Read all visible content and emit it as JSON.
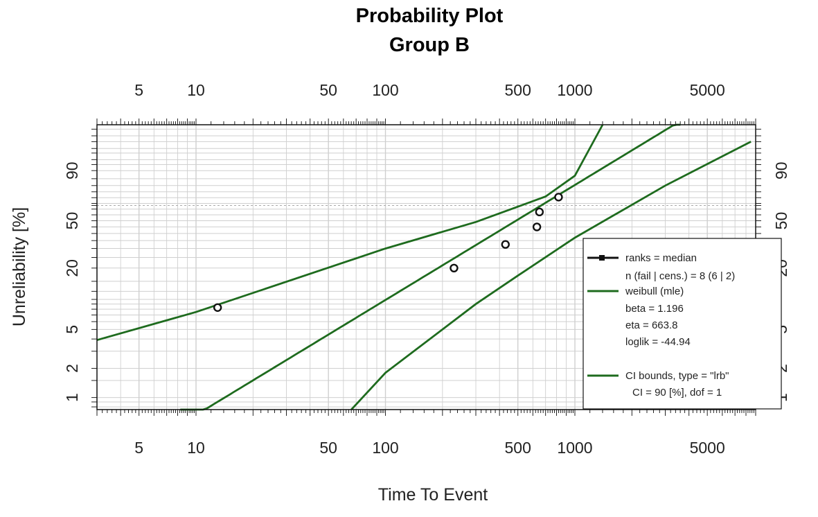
{
  "chart_data": {
    "type": "scatter",
    "title": "Probability Plot",
    "subtitle": "Group B",
    "xlabel": "Time To Event",
    "ylabel": "Unreliability [%]",
    "x_scale": "log",
    "y_scale": "weibull",
    "xlim": [
      3,
      9000
    ],
    "ylim": [
      0.75,
      99.9
    ],
    "x_ticks": [
      5,
      10,
      50,
      100,
      500,
      1000,
      5000
    ],
    "x_tick_labels": [
      "5",
      "10",
      "50",
      "100",
      "500",
      "1000",
      "5000"
    ],
    "y_ticks": [
      1,
      2,
      5,
      20,
      50,
      90
    ],
    "y_tick_labels": [
      "1",
      "2",
      "5",
      "20",
      "50",
      "90"
    ],
    "grid": true,
    "legend_position": "bottom-right",
    "points": [
      {
        "x": 13,
        "y": 8.3
      },
      {
        "x": 230,
        "y": 20.0
      },
      {
        "x": 430,
        "y": 32.5
      },
      {
        "x": 630,
        "y": 45.0
      },
      {
        "x": 650,
        "y": 57.5
      },
      {
        "x": 820,
        "y": 70.5
      }
    ],
    "series": [
      {
        "name": "weibull (mle)",
        "beta": 1.196,
        "eta": 663.8,
        "color": "#1e6b1e"
      },
      {
        "name": "CI bounds",
        "color": "#1e6b1e",
        "lower": [
          [
            66,
            0.75
          ],
          [
            100,
            1.8
          ],
          [
            300,
            9.0
          ],
          [
            500,
            17.0
          ],
          [
            1000,
            37.0
          ],
          [
            3000,
            80.0
          ],
          [
            8500,
            99.0
          ]
        ],
        "upper": [
          [
            3,
            3.9
          ],
          [
            10,
            7.5
          ],
          [
            100,
            30.0
          ],
          [
            300,
            49.0
          ],
          [
            700,
            71.0
          ],
          [
            1000,
            87.0
          ],
          [
            1400,
            99.9
          ]
        ]
      }
    ],
    "legend": {
      "ranks_label": "ranks = median",
      "n_label": "n (fail | cens.) = 8 (6 | 2)",
      "fit_label": "weibull (mle)",
      "beta_label": "beta = 1.196",
      "eta_label": "eta = 663.8",
      "loglik_label": "loglik = -44.94",
      "ci_label": "CI bounds, type = \"lrb\"",
      "ci_detail": "CI = 90 [%], dof = 1"
    },
    "colors": {
      "fit": "#1e6b1e",
      "points": "#111111",
      "grid": "#cfcfcf"
    }
  }
}
